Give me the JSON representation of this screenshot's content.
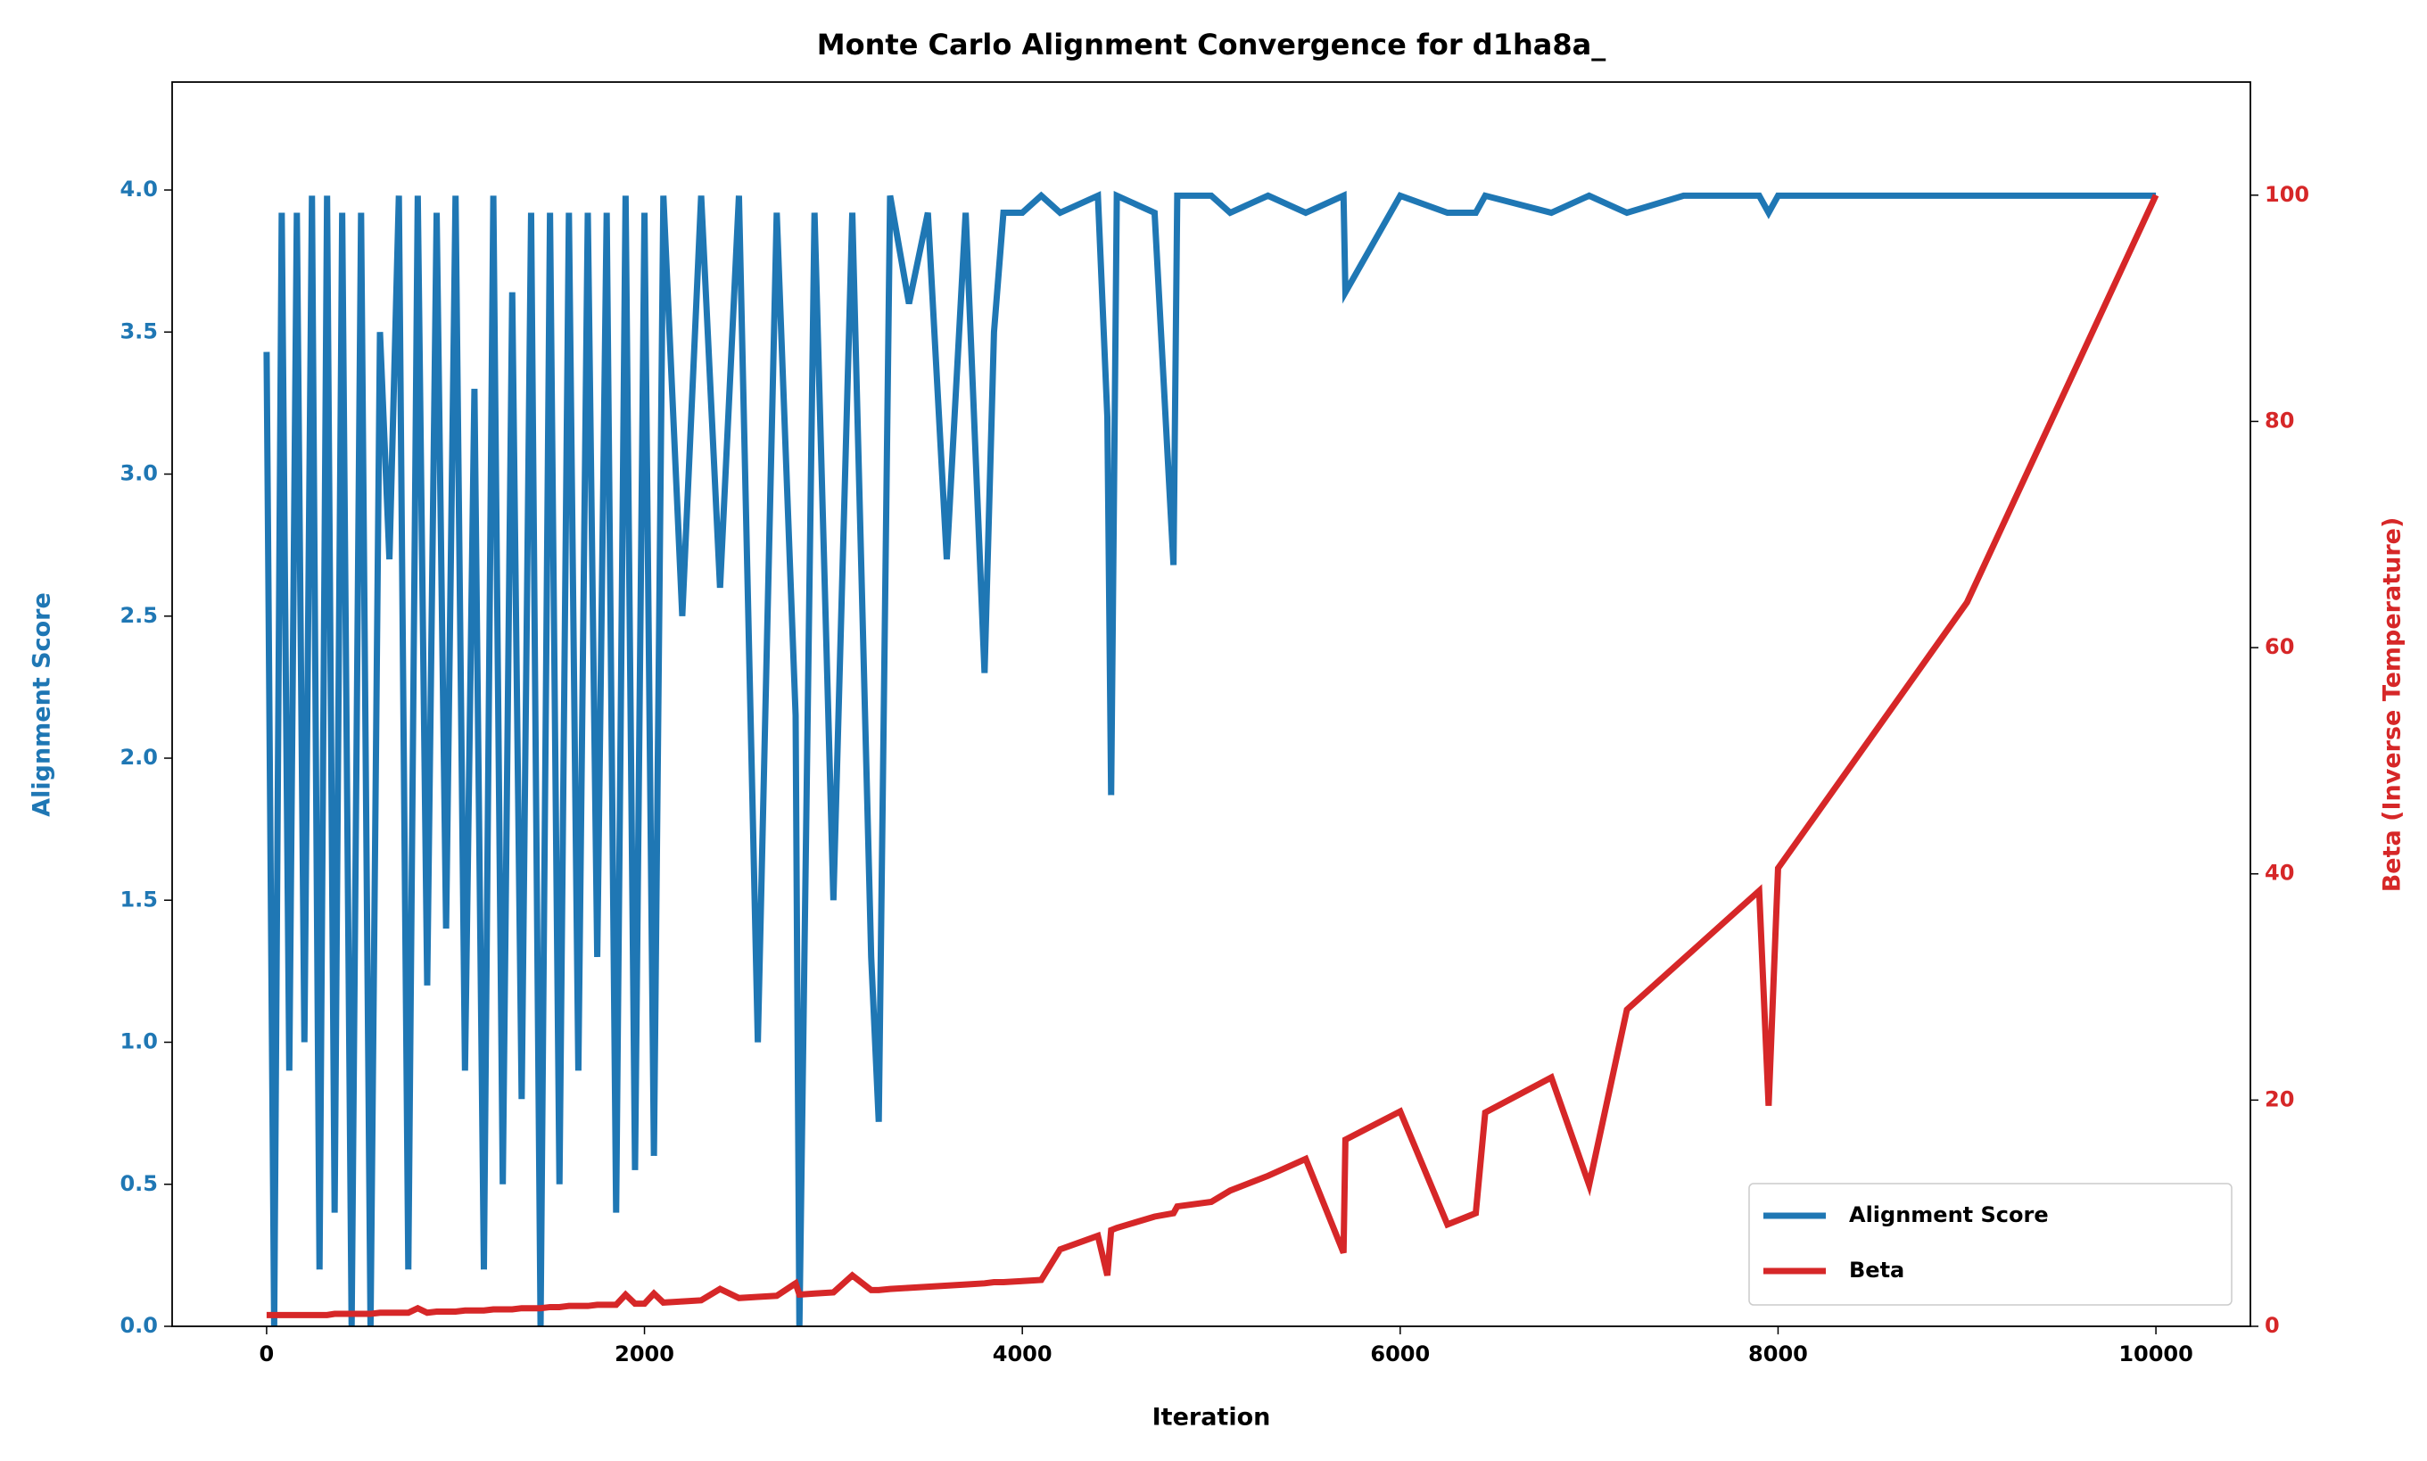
{
  "chart_data": {
    "type": "line",
    "title": "Monte Carlo Alignment Convergence for d1ha8a_",
    "x_label": "Iteration",
    "y_label": "Alignment Score",
    "y2_label": "Beta (Inverse Temperature)",
    "x": [
      0,
      40,
      80,
      120,
      160,
      200,
      240,
      280,
      320,
      360,
      400,
      450,
      500,
      550,
      600,
      650,
      700,
      750,
      800,
      850,
      900,
      950,
      1000,
      1050,
      1100,
      1150,
      1200,
      1250,
      1300,
      1350,
      1400,
      1450,
      1500,
      1550,
      1600,
      1650,
      1700,
      1750,
      1800,
      1850,
      1900,
      1950,
      2000,
      2050,
      2100,
      2200,
      2300,
      2400,
      2500,
      2600,
      2700,
      2800,
      2820,
      2900,
      3000,
      3100,
      3200,
      3240,
      3300,
      3400,
      3500,
      3600,
      3700,
      3800,
      3850,
      3900,
      4000,
      4100,
      4200,
      4400,
      4450,
      4470,
      4500,
      4700,
      4800,
      4820,
      5000,
      5100,
      5300,
      5500,
      5700,
      5710,
      6000,
      6250,
      6400,
      6450,
      6800,
      7000,
      7200,
      7500,
      7900,
      7950,
      8000,
      9000,
      10000
    ],
    "series": [
      {
        "name": "Alignment Score",
        "color": "#1f77b4",
        "values": [
          3.43,
          0.0,
          3.92,
          0.9,
          3.92,
          1.0,
          3.98,
          0.2,
          3.98,
          0.4,
          3.92,
          0.0,
          3.92,
          0.0,
          3.5,
          2.7,
          3.98,
          0.2,
          3.98,
          1.2,
          3.92,
          1.4,
          3.98,
          0.9,
          3.3,
          0.2,
          3.98,
          0.5,
          3.64,
          0.8,
          3.92,
          0.0,
          3.92,
          0.5,
          3.92,
          0.9,
          3.92,
          1.3,
          3.92,
          0.4,
          3.98,
          0.55,
          3.92,
          0.6,
          3.98,
          2.5,
          3.98,
          2.6,
          3.98,
          1.0,
          3.92,
          2.15,
          0.0,
          3.92,
          1.5,
          3.92,
          1.3,
          0.72,
          3.98,
          3.6,
          3.92,
          2.7,
          3.92,
          2.3,
          3.5,
          3.92,
          3.92,
          3.98,
          3.92,
          3.98,
          3.2,
          1.87,
          3.98,
          3.92,
          2.68,
          3.98,
          3.98,
          3.92,
          3.98,
          3.92,
          3.98,
          3.64,
          3.98,
          3.92,
          3.92,
          3.98,
          3.92,
          3.98,
          3.92,
          3.98,
          3.98,
          3.92,
          3.98,
          3.98,
          3.98
        ]
      },
      {
        "name": "Beta",
        "color": "#d62728",
        "axis": "y2",
        "values": [
          1.0,
          1.0,
          1.0,
          1.0,
          1.0,
          1.0,
          1.0,
          1.0,
          1.0,
          1.1,
          1.1,
          1.1,
          1.1,
          1.1,
          1.2,
          1.2,
          1.2,
          1.2,
          1.6,
          1.2,
          1.3,
          1.3,
          1.3,
          1.4,
          1.4,
          1.4,
          1.5,
          1.5,
          1.5,
          1.6,
          1.6,
          1.6,
          1.7,
          1.7,
          1.8,
          1.8,
          1.8,
          1.9,
          1.9,
          1.9,
          2.8,
          2.0,
          2.0,
          2.9,
          2.1,
          2.2,
          2.3,
          3.3,
          2.5,
          2.6,
          2.7,
          3.8,
          2.8,
          2.9,
          3.0,
          4.5,
          3.2,
          3.2,
          3.3,
          3.4,
          3.5,
          3.6,
          3.7,
          3.8,
          3.9,
          3.9,
          4.0,
          4.1,
          6.8,
          8.0,
          4.5,
          8.5,
          8.7,
          9.7,
          10.0,
          10.6,
          11.0,
          12.0,
          13.3,
          14.8,
          6.5,
          16.5,
          19.0,
          9.0,
          10.0,
          18.9,
          22.0,
          12.5,
          28.0,
          32.5,
          38.5,
          19.5,
          40.5,
          64,
          100
        ]
      }
    ],
    "xlim": [
      -500,
      10500
    ],
    "xticks": [
      0,
      2000,
      4000,
      6000,
      8000,
      10000
    ],
    "ylim": [
      0,
      4.38
    ],
    "yticks": [
      {
        "value": 0,
        "label": "0.0"
      },
      0.5,
      {
        "value": 1,
        "label": "1.0"
      },
      1.5,
      {
        "value": 2,
        "label": "2.0"
      },
      2.5,
      {
        "value": 3,
        "label": "3.0"
      },
      3.5,
      {
        "value": 4,
        "label": "4.0"
      }
    ],
    "y2lim": [
      0,
      110
    ],
    "y2ticks": [
      0,
      20,
      40,
      60,
      80,
      100
    ],
    "legend": "lower right"
  }
}
